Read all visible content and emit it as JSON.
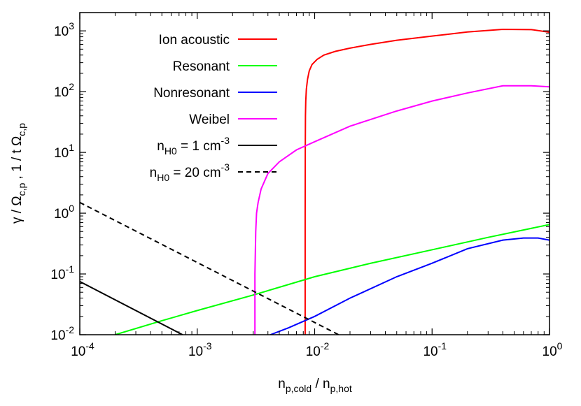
{
  "chart_data": {
    "type": "line",
    "xscale": "log",
    "yscale": "log",
    "xlim": [
      0.0001,
      1
    ],
    "ylim": [
      0.01,
      2000
    ],
    "grid": false,
    "legend_position": "top-left",
    "xlabel": {
      "base": "n",
      "sub1": "p,cold",
      "sep": " / ",
      "base2": "n",
      "sub2": "p,hot"
    },
    "ylabel": {
      "p1": "γ / Ω",
      "s1": "c,p",
      "p2": " , 1 / t Ω",
      "s2": "c,p"
    },
    "xticks": [
      {
        "value": 0.0001,
        "base": "10",
        "exp": "-4"
      },
      {
        "value": 0.001,
        "base": "10",
        "exp": "-3"
      },
      {
        "value": 0.01,
        "base": "10",
        "exp": "-2"
      },
      {
        "value": 0.1,
        "base": "10",
        "exp": "-1"
      },
      {
        "value": 1,
        "base": "10",
        "exp": "0"
      }
    ],
    "yticks": [
      {
        "value": 0.01,
        "base": "10",
        "exp": "-2"
      },
      {
        "value": 0.1,
        "base": "10",
        "exp": "-1"
      },
      {
        "value": 1,
        "base": "10",
        "exp": "0"
      },
      {
        "value": 10,
        "base": "10",
        "exp": "1"
      },
      {
        "value": 100,
        "base": "10",
        "exp": "2"
      },
      {
        "value": 1000,
        "base": "10",
        "exp": "3"
      }
    ],
    "series": [
      {
        "name": "Ion acoustic",
        "color": "#ff0000",
        "dash": "solid",
        "x": [
          0.0083,
          0.0083,
          0.00832,
          0.00835,
          0.0084,
          0.0085,
          0.0087,
          0.009,
          0.0095,
          0.0105,
          0.012,
          0.015,
          0.02,
          0.03,
          0.05,
          0.1,
          0.2,
          0.4,
          0.7,
          1.0
        ],
        "y": [
          0.01,
          1,
          10,
          40,
          70,
          110,
          160,
          220,
          280,
          340,
          400,
          460,
          520,
          600,
          700,
          820,
          960,
          1060,
          1050,
          950
        ]
      },
      {
        "name": "Resonant",
        "color": "#00ff00",
        "dash": "solid",
        "x": [
          0.0002,
          0.0005,
          0.001,
          0.003,
          0.01,
          0.03,
          0.1,
          0.3,
          1.0
        ],
        "y": [
          0.01,
          0.017,
          0.025,
          0.045,
          0.09,
          0.15,
          0.25,
          0.4,
          0.65
        ]
      },
      {
        "name": "Nonresonant",
        "color": "#0000ff",
        "dash": "solid",
        "x": [
          0.0042,
          0.006,
          0.01,
          0.02,
          0.05,
          0.1,
          0.2,
          0.4,
          0.6,
          0.8,
          1.0
        ],
        "y": [
          0.01,
          0.013,
          0.02,
          0.04,
          0.09,
          0.15,
          0.26,
          0.36,
          0.39,
          0.39,
          0.36
        ]
      },
      {
        "name": "Weibel",
        "color": "#ff00ff",
        "dash": "solid",
        "x": [
          0.0031,
          0.0031,
          0.00315,
          0.0032,
          0.0033,
          0.0035,
          0.004,
          0.005,
          0.007,
          0.01,
          0.02,
          0.05,
          0.1,
          0.2,
          0.4,
          0.7,
          1.0
        ],
        "y": [
          0.01,
          0.1,
          0.5,
          1,
          1.5,
          2.5,
          4.5,
          7,
          11,
          15,
          27,
          48,
          70,
          95,
          125,
          125,
          120
        ]
      },
      {
        "name": "n_H0 = 1 cm^-3",
        "label": {
          "base": "n",
          "sub": "H0",
          "mid": " = 1 cm",
          "sup": "-3"
        },
        "color": "#000000",
        "dash": "solid",
        "x": [
          0.0001,
          0.00075
        ],
        "y": [
          0.075,
          0.01
        ]
      },
      {
        "name": "n_H0 = 20 cm^-3",
        "label": {
          "base": "n",
          "sub": "H0",
          "mid": " = 20 cm",
          "sup": "-3"
        },
        "color": "#000000",
        "dash": "dashed",
        "x": [
          0.0001,
          0.016
        ],
        "y": [
          1.5,
          0.01
        ]
      }
    ]
  }
}
